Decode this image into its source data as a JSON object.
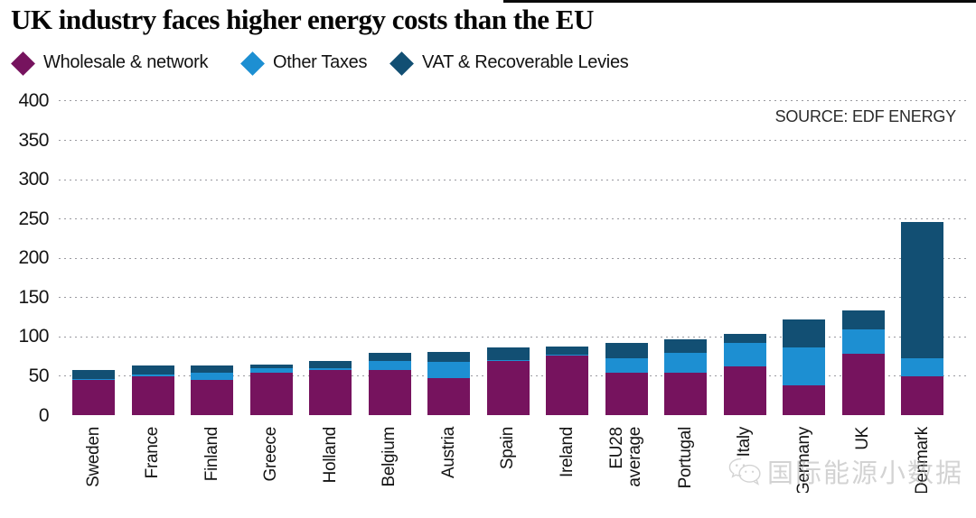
{
  "title": "UK industry faces higher energy costs than the EU",
  "source": "SOURCE: EDF ENERGY",
  "watermark": "国际能源小数据",
  "legend": [
    {
      "label": "Wholesale & network",
      "color": "#76135e"
    },
    {
      "label": "Other Taxes",
      "color": "#1d8fd2"
    },
    {
      "label": "VAT & Recoverable Levies",
      "color": "#124f73"
    }
  ],
  "chart_data": {
    "type": "bar",
    "stacked": true,
    "title": "UK industry faces higher energy costs than the EU",
    "xlabel": "",
    "ylabel": "",
    "ylim": [
      0,
      400
    ],
    "yticks": [
      0,
      50,
      100,
      150,
      200,
      250,
      300,
      350,
      400
    ],
    "grid": "horizontal-dotted",
    "legend_position": "top",
    "categories": [
      "Sweden",
      "France",
      "Finland",
      "Greece",
      "Holland",
      "Belgium",
      "Austria",
      "Spain",
      "Ireland",
      "EU28\naverage",
      "Portugal",
      "Italy",
      "Germany",
      "UK",
      "Denmark"
    ],
    "series": [
      {
        "name": "Wholesale & network",
        "color": "#76135e",
        "values": [
          46,
          50,
          45,
          54,
          58,
          58,
          48,
          70,
          77,
          55,
          54,
          62,
          39,
          79,
          50
        ]
      },
      {
        "name": "Other Taxes",
        "color": "#1d8fd2",
        "values": [
          1,
          2,
          9,
          6,
          2,
          11,
          20,
          1,
          1,
          18,
          26,
          30,
          48,
          31,
          23
        ]
      },
      {
        "name": "VAT & Recoverable Levies",
        "color": "#124f73",
        "values": [
          11,
          12,
          10,
          5,
          10,
          11,
          13,
          16,
          10,
          19,
          17,
          12,
          35,
          24,
          173
        ]
      }
    ]
  }
}
